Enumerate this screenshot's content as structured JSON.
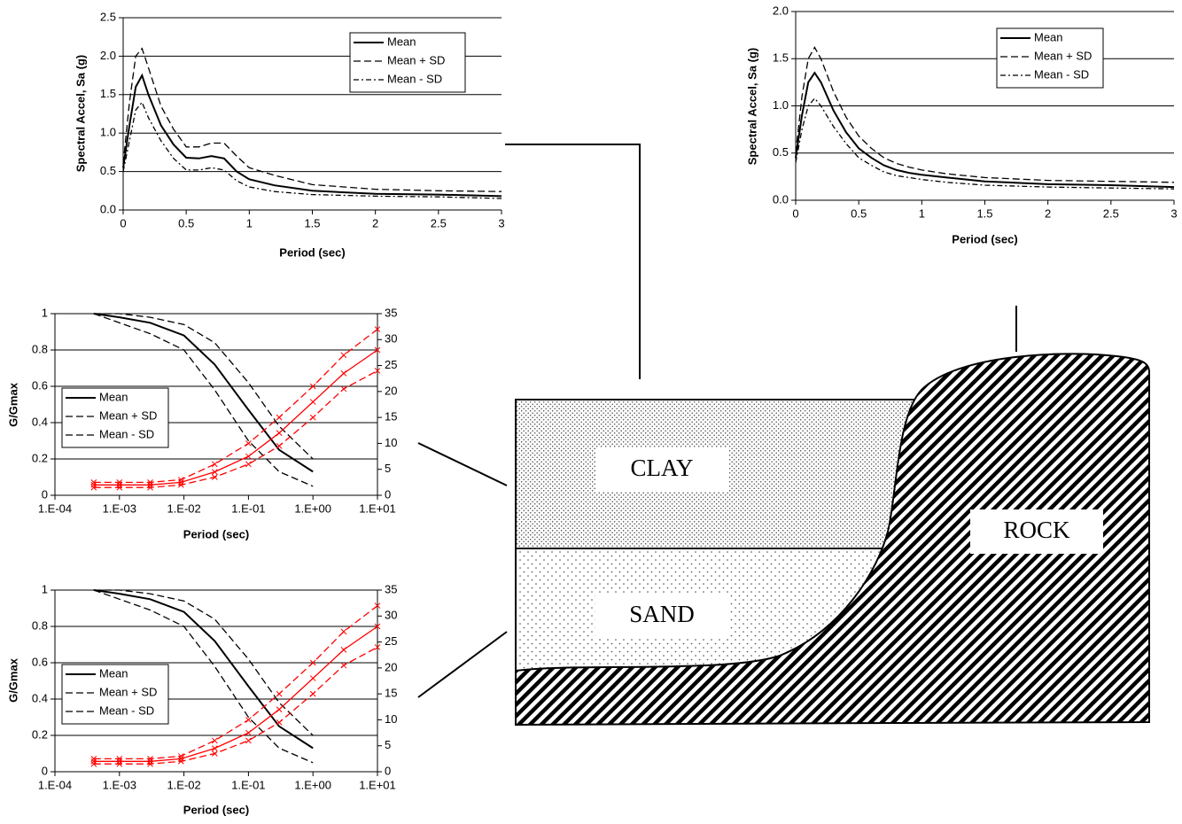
{
  "chart_data": [
    {
      "type": "line",
      "x_label": "Period (sec)",
      "y_label": "Spectral Accel, Sa (g)",
      "grid": true,
      "x": [
        0,
        0.05,
        0.1,
        0.15,
        0.2,
        0.3,
        0.4,
        0.5,
        0.6,
        0.7,
        0.8,
        0.9,
        1.0,
        1.2,
        1.5,
        2.0,
        2.5,
        3.0
      ],
      "xlim": [
        0,
        3
      ],
      "xticks": [
        0,
        0.5,
        1,
        1.5,
        2,
        2.5,
        3
      ],
      "ylim": [
        0,
        2.5
      ],
      "yticks": [
        {
          "value": 0,
          "label": "0.0"
        },
        0.5,
        {
          "value": 1,
          "label": "1.0"
        },
        1.5,
        {
          "value": 2,
          "label": "2.0"
        },
        2.5
      ],
      "series": [
        {
          "name": "Mean",
          "color": "#000000",
          "linestyle": "solid",
          "values": [
            0.55,
            1.1,
            1.6,
            1.75,
            1.5,
            1.1,
            0.85,
            0.68,
            0.67,
            0.7,
            0.67,
            0.5,
            0.4,
            0.32,
            0.25,
            0.21,
            0.2,
            0.18
          ]
        },
        {
          "name": "Mean + SD",
          "color": "#000000",
          "linestyle": "dashed",
          "values": [
            0.6,
            1.4,
            2.0,
            2.1,
            1.85,
            1.35,
            1.05,
            0.82,
            0.82,
            0.87,
            0.87,
            0.7,
            0.55,
            0.45,
            0.33,
            0.27,
            0.25,
            0.24
          ]
        },
        {
          "name": "Mean - SD",
          "color": "#000000",
          "linestyle": "dashdot",
          "values": [
            0.5,
            0.9,
            1.3,
            1.4,
            1.2,
            0.9,
            0.67,
            0.52,
            0.52,
            0.55,
            0.52,
            0.38,
            0.3,
            0.24,
            0.2,
            0.18,
            0.17,
            0.15
          ]
        }
      ]
    },
    {
      "type": "line",
      "x_label": "Period (sec)",
      "y_label": "Spectral Accel, Sa (g)",
      "grid": true,
      "x": [
        0,
        0.05,
        0.1,
        0.15,
        0.2,
        0.3,
        0.4,
        0.5,
        0.6,
        0.7,
        0.8,
        0.9,
        1.0,
        1.2,
        1.5,
        2.0,
        2.5,
        3.0
      ],
      "xlim": [
        0,
        3
      ],
      "xticks": [
        0,
        0.5,
        1,
        1.5,
        2,
        2.5,
        3
      ],
      "ylim": [
        0,
        2
      ],
      "yticks": [
        {
          "value": 0,
          "label": "0.0"
        },
        0.5,
        {
          "value": 1,
          "label": "1.0"
        },
        1.5,
        {
          "value": 2,
          "label": "2.0"
        }
      ],
      "series": [
        {
          "name": "Mean",
          "color": "#000000",
          "linestyle": "solid",
          "values": [
            0.45,
            0.9,
            1.25,
            1.35,
            1.25,
            0.95,
            0.72,
            0.55,
            0.45,
            0.37,
            0.32,
            0.29,
            0.27,
            0.24,
            0.2,
            0.17,
            0.16,
            0.14
          ]
        },
        {
          "name": "Mean + SD",
          "color": "#000000",
          "linestyle": "dashed",
          "values": [
            0.5,
            1.1,
            1.5,
            1.62,
            1.5,
            1.15,
            0.88,
            0.68,
            0.55,
            0.45,
            0.39,
            0.35,
            0.32,
            0.28,
            0.24,
            0.21,
            0.2,
            0.19
          ]
        },
        {
          "name": "Mean - SD",
          "color": "#000000",
          "linestyle": "dashdot",
          "values": [
            0.4,
            0.75,
            1.0,
            1.08,
            1.0,
            0.78,
            0.6,
            0.45,
            0.37,
            0.3,
            0.26,
            0.24,
            0.22,
            0.19,
            0.16,
            0.14,
            0.13,
            0.12
          ]
        }
      ]
    },
    {
      "type": "line",
      "x_label": "Period (sec)",
      "y_label": "G/Gmax",
      "grid": true,
      "xscale": "log",
      "xlim": [
        0.0001,
        10
      ],
      "xticks": [
        {
          "value": 0.0001,
          "label": "1.E-04"
        },
        {
          "value": 0.001,
          "label": "1.E-03"
        },
        {
          "value": 0.01,
          "label": "1.E-02"
        },
        {
          "value": 0.1,
          "label": "1.E-01"
        },
        {
          "value": 1,
          "label": "1.E+00"
        },
        {
          "value": 10,
          "label": "1.E+01"
        }
      ],
      "ylim": [
        0,
        1
      ],
      "yticks": [
        0,
        0.2,
        0.4,
        0.6,
        0.8,
        1
      ],
      "y2lim": [
        0,
        35
      ],
      "y2ticks": [
        0,
        5,
        10,
        15,
        20,
        25,
        30,
        35
      ],
      "series": [
        {
          "name": "Mean",
          "color": "#000000",
          "linestyle": "solid",
          "x": [
            0.0004,
            0.001,
            0.003,
            0.01,
            0.03,
            0.1,
            0.3,
            1
          ],
          "values": [
            1,
            0.98,
            0.95,
            0.88,
            0.72,
            0.47,
            0.25,
            0.13
          ]
        },
        {
          "name": "Mean + SD",
          "color": "#000000",
          "linestyle": "dashed",
          "x": [
            0.0004,
            0.001,
            0.003,
            0.01,
            0.03,
            0.1,
            0.3,
            1
          ],
          "values": [
            1,
            1,
            0.98,
            0.94,
            0.84,
            0.62,
            0.38,
            0.2
          ]
        },
        {
          "name": "Mean - SD",
          "color": "#000000",
          "linestyle": "dashed",
          "x": [
            0.0004,
            0.001,
            0.003,
            0.01,
            0.03,
            0.1,
            0.3,
            1
          ],
          "values": [
            1,
            0.95,
            0.89,
            0.8,
            0.58,
            0.3,
            0.13,
            0.05
          ]
        },
        {
          "color": "#ff0000",
          "linestyle": "solid",
          "marker": "x",
          "axis": "y2",
          "x": [
            0.0004,
            0.001,
            0.003,
            0.009,
            0.03,
            0.1,
            0.3,
            1,
            3,
            10
          ],
          "values": [
            2,
            2,
            2,
            2.5,
            4.5,
            7.5,
            12,
            18,
            23.5,
            28
          ]
        },
        {
          "color": "#ff0000",
          "linestyle": "dashed",
          "marker": "x",
          "axis": "y2",
          "x": [
            0.0004,
            0.001,
            0.003,
            0.009,
            0.03,
            0.1,
            0.3,
            1,
            3,
            10
          ],
          "values": [
            2.5,
            2.5,
            2.5,
            3,
            6,
            10,
            15,
            21,
            27,
            32
          ]
        },
        {
          "color": "#ff0000",
          "linestyle": "dashed",
          "marker": "x",
          "axis": "y2",
          "x": [
            0.0004,
            0.001,
            0.003,
            0.009,
            0.03,
            0.1,
            0.3,
            1,
            3,
            10
          ],
          "values": [
            1.5,
            1.5,
            1.5,
            2,
            3.5,
            6,
            9.5,
            15,
            20.5,
            24
          ]
        }
      ]
    },
    {
      "type": "line",
      "x_label": "Period (sec)",
      "y_label": "G/Gmax",
      "grid": true,
      "xscale": "log",
      "xlim": [
        0.0001,
        10
      ],
      "xticks": [
        {
          "value": 0.0001,
          "label": "1.E-04"
        },
        {
          "value": 0.001,
          "label": "1.E-03"
        },
        {
          "value": 0.01,
          "label": "1.E-02"
        },
        {
          "value": 0.1,
          "label": "1.E-01"
        },
        {
          "value": 1,
          "label": "1.E+00"
        },
        {
          "value": 10,
          "label": "1.E+01"
        }
      ],
      "ylim": [
        0,
        1
      ],
      "yticks": [
        0,
        0.2,
        0.4,
        0.6,
        0.8,
        1
      ],
      "y2lim": [
        0,
        35
      ],
      "y2ticks": [
        0,
        5,
        10,
        15,
        20,
        25,
        30,
        35
      ],
      "series": [
        {
          "name": "Mean",
          "color": "#000000",
          "linestyle": "solid",
          "x": [
            0.0004,
            0.001,
            0.003,
            0.01,
            0.03,
            0.1,
            0.3,
            1
          ],
          "values": [
            1,
            0.98,
            0.95,
            0.88,
            0.72,
            0.47,
            0.25,
            0.13
          ]
        },
        {
          "name": "Mean + SD",
          "color": "#000000",
          "linestyle": "dashed",
          "x": [
            0.0004,
            0.001,
            0.003,
            0.01,
            0.03,
            0.1,
            0.3,
            1
          ],
          "values": [
            1,
            1,
            0.98,
            0.94,
            0.84,
            0.62,
            0.38,
            0.2
          ]
        },
        {
          "name": "Mean - SD",
          "color": "#000000",
          "linestyle": "dashed",
          "x": [
            0.0004,
            0.001,
            0.003,
            0.01,
            0.03,
            0.1,
            0.3,
            1
          ],
          "values": [
            1,
            0.95,
            0.89,
            0.8,
            0.58,
            0.3,
            0.13,
            0.05
          ]
        },
        {
          "color": "#ff0000",
          "linestyle": "solid",
          "marker": "x",
          "axis": "y2",
          "x": [
            0.0004,
            0.001,
            0.003,
            0.009,
            0.03,
            0.1,
            0.3,
            1,
            3,
            10
          ],
          "values": [
            2,
            2,
            2,
            2.5,
            4.5,
            7.5,
            12,
            18,
            23.5,
            28
          ]
        },
        {
          "color": "#ff0000",
          "linestyle": "dashed",
          "marker": "x",
          "axis": "y2",
          "x": [
            0.0004,
            0.001,
            0.003,
            0.009,
            0.03,
            0.1,
            0.3,
            1,
            3,
            10
          ],
          "values": [
            2.5,
            2.5,
            2.5,
            3,
            6,
            10,
            15,
            21,
            27,
            32
          ]
        },
        {
          "color": "#ff0000",
          "linestyle": "dashed",
          "marker": "x",
          "axis": "y2",
          "x": [
            0.0004,
            0.001,
            0.003,
            0.009,
            0.03,
            0.1,
            0.3,
            1,
            3,
            10
          ],
          "values": [
            1.5,
            1.5,
            1.5,
            2,
            3.5,
            6,
            9.5,
            15,
            20.5,
            24
          ]
        }
      ]
    }
  ],
  "diagram": {
    "labels": [
      "CLAY",
      "SAND",
      "ROCK"
    ]
  }
}
